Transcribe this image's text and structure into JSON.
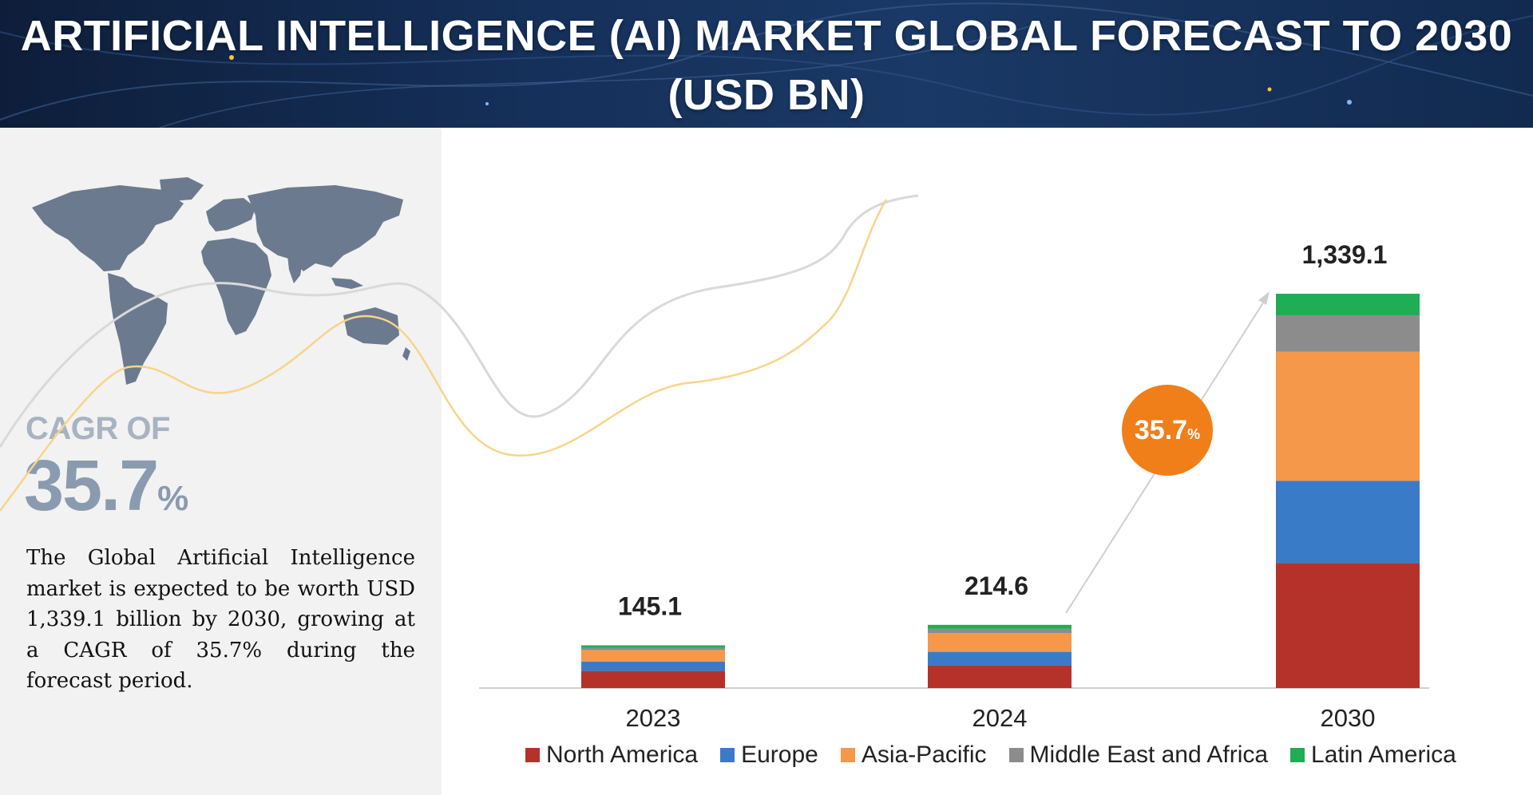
{
  "header": {
    "title_line1": "ARTIFICIAL INTELLIGENCE (AI) MARKET GLOBAL FORECAST TO 2030",
    "title_line2": "(USD BN)"
  },
  "sidebar": {
    "cagr_label": "CAGR OF",
    "cagr_value": "35.7",
    "cagr_unit": "%",
    "description": "The Global Artificial Intelligence market is expected to be worth USD 1,339.1 billion by 2030, growing at a CAGR of 35.7% during the forecast period."
  },
  "badge": {
    "value": "35.7",
    "unit": "%"
  },
  "colors": {
    "north_america": "#b5322a",
    "europe": "#3a7bc8",
    "asia_pacific": "#f5984a",
    "mea": "#8c8c8c",
    "latin_america": "#1fae55",
    "badge": "#f07f1a"
  },
  "chart_data": {
    "type": "bar",
    "stacked": true,
    "title": "ARTIFICIAL INTELLIGENCE (AI) MARKET GLOBAL FORECAST TO 2030 (USD BN)",
    "categories": [
      "2023",
      "2024",
      "2030"
    ],
    "totals": [
      145.1,
      214.6,
      1339.1
    ],
    "total_labels": [
      "145.1",
      "214.6",
      "1,339.1"
    ],
    "series": [
      {
        "name": "North America",
        "color": "#b5322a",
        "values": [
          58,
          77,
          424
        ]
      },
      {
        "name": "Europe",
        "color": "#3a7bc8",
        "values": [
          32,
          46,
          280
        ]
      },
      {
        "name": "Asia-Pacific",
        "color": "#f5984a",
        "values": [
          39,
          64,
          438
        ]
      },
      {
        "name": "Middle East and Africa",
        "color": "#8c8c8c",
        "values": [
          8,
          14,
          124
        ]
      },
      {
        "name": "Latin America",
        "color": "#1fae55",
        "values": [
          8.1,
          13.6,
          73.1
        ]
      }
    ],
    "legend_position": "bottom",
    "grid": false
  }
}
